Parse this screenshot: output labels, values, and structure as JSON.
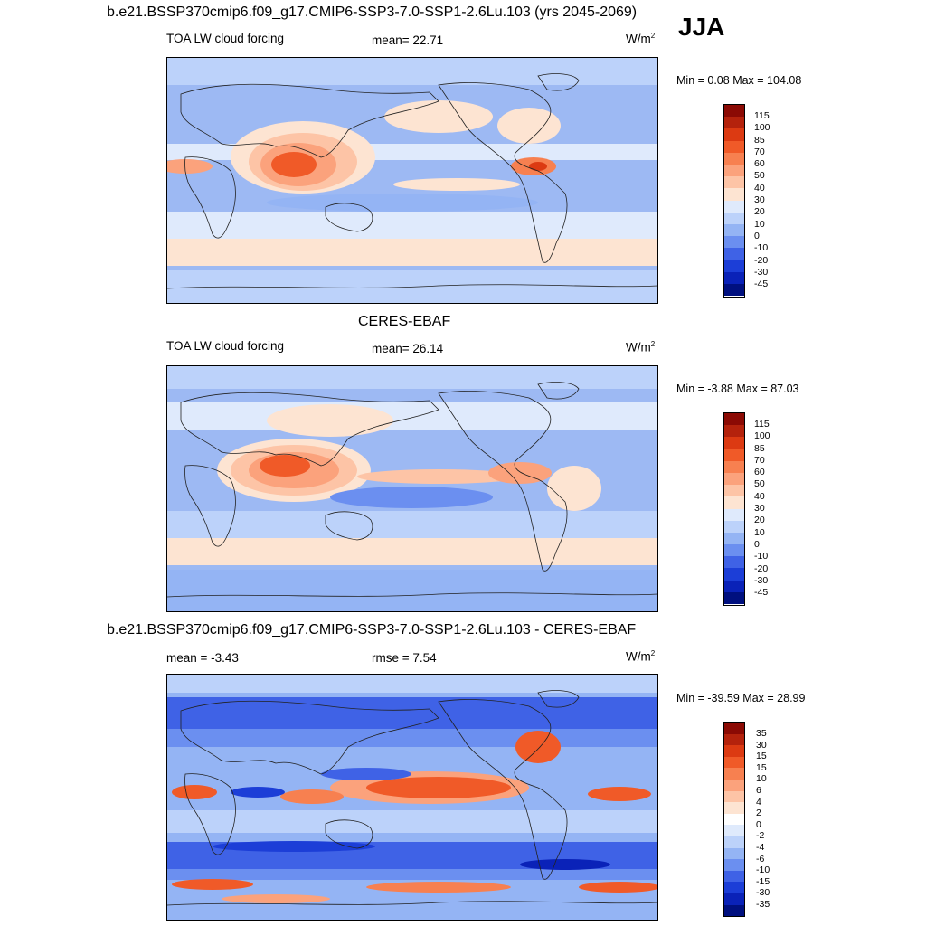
{
  "header": {
    "case_title": "b.e21.BSSP370cmip6.f09_g17.CMIP6-SSP3-7.0-SSP1-2.6Lu.103 (yrs 2045-2069)",
    "season": "JJA"
  },
  "panels": [
    {
      "id": "model",
      "title": "",
      "variable": "TOA LW cloud forcing",
      "stat_label": "mean=  22.71",
      "units": "W/m",
      "units_sup": "2",
      "minmax": "Min =   0.08 Max = 104.08",
      "colorbar_ticks": [
        "115",
        "100",
        "85",
        "70",
        "60",
        "50",
        "40",
        "30",
        "20",
        "10",
        "0",
        "-10",
        "-20",
        "-30",
        "-45"
      ]
    },
    {
      "id": "obs",
      "title": "CERES-EBAF",
      "variable": "TOA LW cloud forcing",
      "stat_label": "mean=  26.14",
      "units": "W/m",
      "units_sup": "2",
      "minmax": "Min =  -3.88 Max =  87.03",
      "colorbar_ticks": [
        "115",
        "100",
        "85",
        "70",
        "60",
        "50",
        "40",
        "30",
        "20",
        "10",
        "0",
        "-10",
        "-20",
        "-30",
        "-45"
      ]
    },
    {
      "id": "diff",
      "title": "b.e21.BSSP370cmip6.f09_g17.CMIP6-SSP3-7.0-SSP1-2.6Lu.103 - CERES-EBAF",
      "variable": "mean =  -3.43",
      "stat_label": "rmse =   7.54",
      "units": "W/m",
      "units_sup": "2",
      "minmax": "Min = -39.59 Max =  28.99",
      "colorbar_ticks": [
        "35",
        "30",
        "15",
        "15",
        "10",
        "6",
        "4",
        "2",
        "0",
        "-2",
        "-4",
        "-6",
        "-10",
        "-15",
        "-30",
        "-35"
      ]
    }
  ],
  "colors": {
    "abs_scale": [
      "#8b0a04",
      "#b4220c",
      "#dc3a12",
      "#f05a28",
      "#f78050",
      "#fba27c",
      "#fdc4a6",
      "#fde4d2",
      "#dfeafc",
      "#bcd2fa",
      "#94b4f4",
      "#6b8ff0",
      "#3f62e6",
      "#1c3ed7",
      "#0a22b8",
      "#00107f"
    ],
    "diff_scale": [
      "#8b0a04",
      "#b4220c",
      "#dc3a12",
      "#f05a28",
      "#f78050",
      "#fba27c",
      "#fdc4a6",
      "#fde4d2",
      "#ffffff",
      "#dfeafc",
      "#bcd2fa",
      "#94b4f4",
      "#6b8ff0",
      "#3f62e6",
      "#1c3ed7",
      "#0a22b8",
      "#00107f"
    ]
  }
}
